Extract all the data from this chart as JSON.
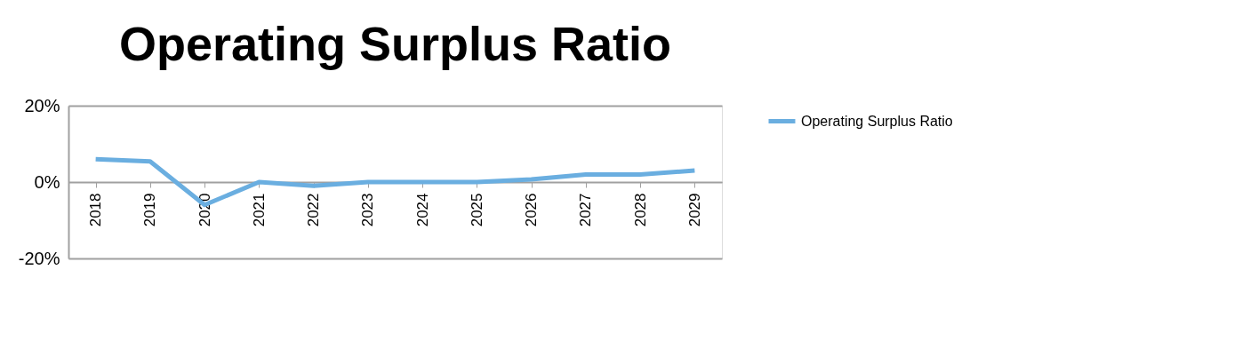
{
  "chart_data": {
    "type": "line",
    "title": "Operating Surplus Ratio",
    "categories": [
      "2018",
      "2019",
      "2020",
      "2021",
      "2022",
      "2023",
      "2024",
      "2025",
      "2026",
      "2027",
      "2028",
      "2029"
    ],
    "series": [
      {
        "name": "Operating Surplus Ratio",
        "color": "#6aaee0",
        "values": [
          6,
          5.4,
          -6,
          0,
          -1,
          0,
          0,
          0,
          0.7,
          2,
          2,
          3
        ]
      }
    ],
    "ylim": [
      -20,
      20
    ],
    "yticks": [
      {
        "value": -20,
        "label": "-20%"
      },
      {
        "value": 0,
        "label": "0%"
      },
      {
        "value": 20,
        "label": "20%"
      }
    ],
    "grid": "y",
    "legend": "right",
    "marker": "none",
    "line_style": "solid"
  }
}
